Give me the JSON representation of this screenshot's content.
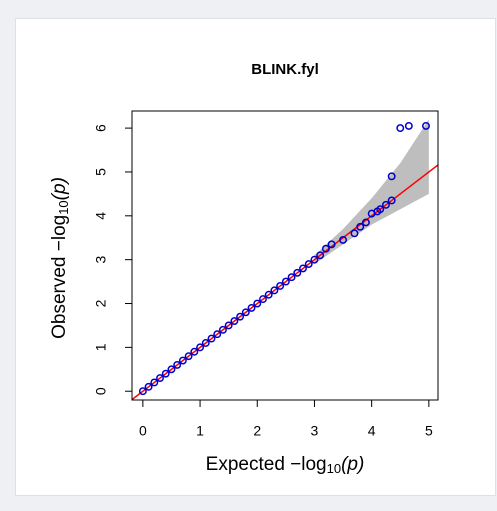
{
  "chart_data": {
    "type": "qq",
    "title": "BLINK.fyl",
    "xlabel": {
      "text": "Expected −log",
      "sub": "10",
      "suffix": "(p)"
    },
    "ylabel": {
      "text": "Observed −log",
      "sub": "10",
      "suffix": "(p)"
    },
    "x": [
      0,
      0.1,
      0.2,
      0.3,
      0.4,
      0.5,
      0.6,
      0.7,
      0.8,
      0.9,
      1.0,
      1.1,
      1.2,
      1.3,
      1.4,
      1.5,
      1.6,
      1.7,
      1.8,
      1.9,
      2.0,
      2.1,
      2.2,
      2.3,
      2.4,
      2.5,
      2.6,
      2.7,
      2.8,
      2.9,
      3.0,
      3.1,
      3.2,
      3.3,
      3.5,
      3.7,
      3.8,
      3.9,
      4.0,
      4.1,
      4.15,
      4.25,
      4.35,
      4.35,
      4.5,
      4.65,
      4.95
    ],
    "y": [
      0,
      0.1,
      0.2,
      0.3,
      0.4,
      0.5,
      0.6,
      0.7,
      0.8,
      0.9,
      1.0,
      1.1,
      1.2,
      1.3,
      1.4,
      1.5,
      1.6,
      1.7,
      1.8,
      1.9,
      2.0,
      2.1,
      2.2,
      2.3,
      2.4,
      2.5,
      2.6,
      2.7,
      2.8,
      2.9,
      3.0,
      3.1,
      3.25,
      3.35,
      3.45,
      3.6,
      3.75,
      3.85,
      4.05,
      4.1,
      4.15,
      4.25,
      4.35,
      4.9,
      6.0,
      6.05,
      6.05
    ],
    "color": "#0000cd",
    "line_color": "#ff0000",
    "ci_color": "#bebebe",
    "ci_x": [
      3,
      3.5,
      4,
      4.5,
      5
    ],
    "ci_upper": [
      3.1,
      3.7,
      4.4,
      5.2,
      6.2
    ],
    "ci_lower": [
      2.9,
      3.35,
      3.8,
      4.15,
      4.5
    ],
    "xlim": [
      -0.19,
      5.16
    ],
    "ylim": [
      -0.2,
      6.39
    ],
    "xticks": [
      0,
      1,
      2,
      3,
      4,
      5
    ],
    "yticks": [
      0,
      1,
      2,
      3,
      4,
      5,
      6
    ]
  }
}
